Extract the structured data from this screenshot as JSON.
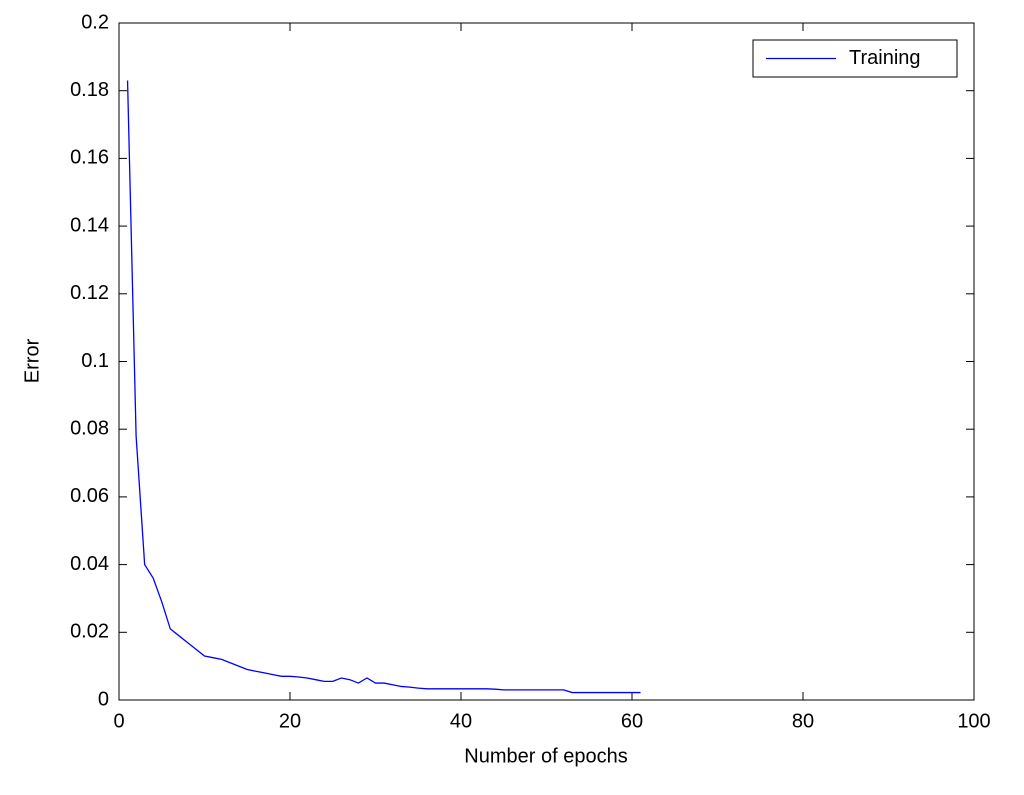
{
  "chart_data": {
    "type": "line",
    "xlabel": "Number of epochs",
    "ylabel": "Error",
    "x": [
      1,
      2,
      3,
      4,
      5,
      6,
      7,
      8,
      9,
      10,
      11,
      12,
      13,
      14,
      15,
      16,
      17,
      18,
      19,
      20,
      21,
      22,
      23,
      24,
      25,
      26,
      27,
      28,
      29,
      30,
      31,
      32,
      33,
      34,
      35,
      36,
      37,
      38,
      39,
      40,
      41,
      42,
      43,
      44,
      45,
      46,
      47,
      48,
      49,
      50,
      51,
      52,
      53,
      54,
      55,
      56,
      57,
      58,
      59,
      60,
      61
    ],
    "series": [
      {
        "name": "Training",
        "color": "#0000ff",
        "values": [
          0.183,
          0.078,
          0.04,
          0.036,
          0.029,
          0.021,
          0.019,
          0.017,
          0.015,
          0.013,
          0.0125,
          0.012,
          0.011,
          0.01,
          0.009,
          0.0085,
          0.008,
          0.0075,
          0.007,
          0.007,
          0.0068,
          0.0065,
          0.006,
          0.0055,
          0.0055,
          0.0065,
          0.006,
          0.005,
          0.0065,
          0.005,
          0.005,
          0.0045,
          0.004,
          0.0038,
          0.0035,
          0.0033,
          0.0033,
          0.0033,
          0.0033,
          0.0033,
          0.0033,
          0.0033,
          0.0033,
          0.0032,
          0.003,
          0.003,
          0.003,
          0.003,
          0.003,
          0.003,
          0.003,
          0.003,
          0.0022,
          0.0022,
          0.0022,
          0.0022,
          0.0022,
          0.0022,
          0.0022,
          0.0022,
          0.0022
        ]
      }
    ],
    "xlim": [
      0,
      100
    ],
    "xticks": [
      0,
      20,
      40,
      60,
      80,
      100
    ],
    "ylim": [
      0,
      0.2
    ],
    "yticks": [
      0,
      0.02,
      0.04,
      0.06,
      0.08,
      0.1,
      0.12,
      0.14,
      0.16,
      0.18,
      0.2
    ],
    "legend": "upper right",
    "grid": false
  }
}
